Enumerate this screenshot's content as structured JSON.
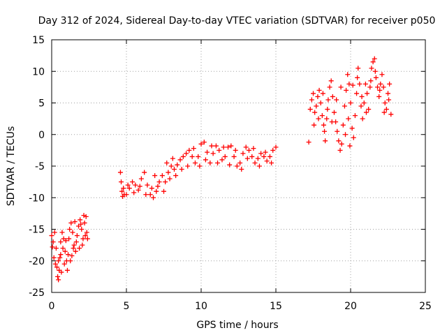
{
  "chart_data": {
    "type": "scatter",
    "title": "Day 312 of 2024, Sidereal Day-to-day VTEC variation (SDTVAR) for receiver p050",
    "xlabel": "GPS time / hours",
    "ylabel": "SDTVAR / TECUs",
    "xlim": [
      0,
      25
    ],
    "ylim": [
      -25,
      15
    ],
    "x_ticks": [
      0,
      5,
      10,
      15,
      20,
      25
    ],
    "y_ticks": [
      -25,
      -20,
      -15,
      -10,
      -5,
      0,
      5,
      10,
      15
    ],
    "grid": true,
    "marker": "plus",
    "color": "#ff0000",
    "series": [
      {
        "points": [
          [
            0.0,
            -16.0
          ],
          [
            0.1,
            -17.0
          ],
          [
            0.2,
            -15.5
          ],
          [
            0.3,
            -18.0
          ],
          [
            0.35,
            -21.0
          ],
          [
            0.4,
            -22.5
          ],
          [
            0.45,
            -23.0
          ],
          [
            0.5,
            -21.5
          ],
          [
            0.55,
            -19.5
          ],
          [
            0.6,
            -17.0
          ],
          [
            0.7,
            -15.5
          ],
          [
            0.8,
            -16.5
          ],
          [
            0.9,
            -18.5
          ],
          [
            1.0,
            -20.0
          ],
          [
            1.1,
            -19.0
          ],
          [
            1.15,
            -16.5
          ],
          [
            1.2,
            -15.0
          ],
          [
            1.3,
            -14.0
          ],
          [
            1.4,
            -15.5
          ],
          [
            1.5,
            -17.5
          ],
          [
            1.6,
            -18.5
          ],
          [
            1.7,
            -16.0
          ],
          [
            1.8,
            -14.5
          ],
          [
            1.9,
            -13.5
          ],
          [
            2.0,
            -15.0
          ],
          [
            2.1,
            -16.5
          ],
          [
            2.2,
            -14.0
          ],
          [
            2.3,
            -13.0
          ],
          [
            2.35,
            -15.5
          ],
          [
            2.4,
            -16.5
          ],
          [
            0.15,
            -19.5
          ],
          [
            0.25,
            -20.5
          ],
          [
            0.45,
            -20.0
          ],
          [
            0.6,
            -19.0
          ],
          [
            0.75,
            -18.0
          ],
          [
            0.85,
            -20.5
          ],
          [
            1.05,
            -21.5
          ],
          [
            1.25,
            -20.0
          ],
          [
            1.45,
            -18.0
          ],
          [
            1.65,
            -17.0
          ],
          [
            1.85,
            -18.0
          ],
          [
            2.05,
            -17.5
          ],
          [
            2.25,
            -16.0
          ],
          [
            0.05,
            -17.8
          ],
          [
            0.95,
            -16.8
          ],
          [
            1.55,
            -13.8
          ],
          [
            2.15,
            -12.8
          ],
          [
            0.65,
            -21.8
          ],
          [
            1.35,
            -19.2
          ],
          [
            1.95,
            -14.2
          ],
          [
            4.6,
            -6.0
          ],
          [
            4.65,
            -7.5
          ],
          [
            4.7,
            -9.0
          ],
          [
            4.75,
            -9.8
          ],
          [
            4.8,
            -8.5
          ],
          [
            4.85,
            -9.5
          ],
          [
            5.0,
            -9.5
          ],
          [
            5.2,
            -8.5
          ],
          [
            5.4,
            -7.5
          ],
          [
            5.6,
            -8.0
          ],
          [
            5.8,
            -8.8
          ],
          [
            6.0,
            -7.0
          ],
          [
            6.2,
            -6.0
          ],
          [
            6.4,
            -8.0
          ],
          [
            6.6,
            -9.5
          ],
          [
            6.8,
            -10.0
          ],
          [
            7.0,
            -9.0
          ],
          [
            7.2,
            -7.5
          ],
          [
            7.4,
            -6.5
          ],
          [
            7.6,
            -7.5
          ],
          [
            7.8,
            -6.0
          ],
          [
            8.0,
            -5.0
          ],
          [
            8.2,
            -5.5
          ],
          [
            8.4,
            -4.8
          ],
          [
            8.6,
            -4.0
          ],
          [
            8.8,
            -3.5
          ],
          [
            9.0,
            -3.0
          ],
          [
            9.2,
            -2.5
          ],
          [
            9.4,
            -3.5
          ],
          [
            9.6,
            -4.5
          ],
          [
            9.8,
            -3.5
          ],
          [
            10.0,
            -1.5
          ],
          [
            10.2,
            -1.2
          ],
          [
            10.4,
            -2.8
          ],
          [
            10.6,
            -4.5
          ],
          [
            10.8,
            -3.0
          ],
          [
            11.0,
            -1.8
          ],
          [
            11.2,
            -2.5
          ],
          [
            11.4,
            -4.0
          ],
          [
            11.6,
            -3.5
          ],
          [
            11.8,
            -2.0
          ],
          [
            12.0,
            -1.8
          ],
          [
            12.2,
            -3.5
          ],
          [
            12.4,
            -5.0
          ],
          [
            12.6,
            -4.5
          ],
          [
            12.8,
            -3.0
          ],
          [
            13.0,
            -2.0
          ],
          [
            13.2,
            -2.5
          ],
          [
            13.4,
            -3.5
          ],
          [
            13.6,
            -4.5
          ],
          [
            13.8,
            -3.8
          ],
          [
            14.0,
            -3.0
          ],
          [
            14.2,
            -3.5
          ],
          [
            14.4,
            -4.2
          ],
          [
            14.6,
            -3.5
          ],
          [
            14.8,
            -2.5
          ],
          [
            15.0,
            -2.0
          ],
          [
            5.1,
            -8.0
          ],
          [
            5.5,
            -9.2
          ],
          [
            5.9,
            -8.2
          ],
          [
            6.3,
            -9.5
          ],
          [
            6.7,
            -8.5
          ],
          [
            7.1,
            -8.2
          ],
          [
            7.5,
            -9.0
          ],
          [
            7.9,
            -7.0
          ],
          [
            8.3,
            -6.5
          ],
          [
            8.7,
            -5.5
          ],
          [
            9.1,
            -5.0
          ],
          [
            9.5,
            -2.2
          ],
          [
            9.9,
            -5.0
          ],
          [
            10.3,
            -4.0
          ],
          [
            10.7,
            -1.8
          ],
          [
            11.1,
            -4.5
          ],
          [
            11.5,
            -2.0
          ],
          [
            11.9,
            -4.8
          ],
          [
            12.3,
            -2.5
          ],
          [
            12.7,
            -5.5
          ],
          [
            13.1,
            -3.8
          ],
          [
            13.5,
            -2.2
          ],
          [
            13.9,
            -5.0
          ],
          [
            14.3,
            -2.8
          ],
          [
            14.7,
            -4.5
          ],
          [
            8.1,
            -3.8
          ],
          [
            7.7,
            -4.5
          ],
          [
            6.9,
            -6.5
          ],
          [
            17.2,
            -1.2
          ],
          [
            17.3,
            4.0
          ],
          [
            17.4,
            5.5
          ],
          [
            17.5,
            6.5
          ],
          [
            17.6,
            3.5
          ],
          [
            17.7,
            4.5
          ],
          [
            17.8,
            6.0
          ],
          [
            17.9,
            7.0
          ],
          [
            18.0,
            5.0
          ],
          [
            18.1,
            3.0
          ],
          [
            18.2,
            1.5
          ],
          [
            18.3,
            -1.0
          ],
          [
            18.4,
            2.5
          ],
          [
            18.5,
            5.5
          ],
          [
            18.6,
            7.5
          ],
          [
            18.7,
            8.5
          ],
          [
            18.8,
            6.0
          ],
          [
            18.9,
            3.5
          ],
          [
            19.0,
            2.0
          ],
          [
            19.1,
            0.5
          ],
          [
            19.2,
            -1.0
          ],
          [
            19.3,
            -2.5
          ],
          [
            19.4,
            -1.5
          ],
          [
            19.5,
            1.5
          ],
          [
            19.6,
            4.5
          ],
          [
            19.7,
            7.0
          ],
          [
            19.8,
            9.5
          ],
          [
            19.9,
            8.0
          ],
          [
            20.0,
            5.0
          ],
          [
            20.1,
            1.0
          ],
          [
            20.2,
            -0.5
          ],
          [
            20.3,
            3.0
          ],
          [
            20.4,
            6.5
          ],
          [
            20.5,
            10.5
          ],
          [
            20.6,
            8.0
          ],
          [
            20.7,
            4.5
          ],
          [
            20.8,
            2.5
          ],
          [
            20.9,
            5.0
          ],
          [
            21.0,
            8.0
          ],
          [
            21.1,
            6.5
          ],
          [
            21.2,
            4.0
          ],
          [
            21.3,
            7.5
          ],
          [
            21.4,
            10.5
          ],
          [
            21.5,
            11.5
          ],
          [
            21.6,
            12.0
          ],
          [
            21.7,
            9.0
          ],
          [
            21.8,
            7.5
          ],
          [
            21.9,
            6.0
          ],
          [
            22.0,
            8.0
          ],
          [
            22.1,
            9.5
          ],
          [
            22.2,
            7.5
          ],
          [
            22.3,
            5.0
          ],
          [
            22.4,
            4.0
          ],
          [
            22.5,
            6.5
          ],
          [
            22.6,
            8.0
          ],
          [
            22.7,
            3.2
          ],
          [
            17.55,
            1.5
          ],
          [
            17.85,
            2.5
          ],
          [
            18.15,
            6.5
          ],
          [
            18.45,
            4.0
          ],
          [
            18.75,
            2.0
          ],
          [
            19.05,
            5.5
          ],
          [
            19.35,
            7.5
          ],
          [
            19.65,
            0.0
          ],
          [
            19.85,
            2.5
          ],
          [
            20.15,
            7.8
          ],
          [
            20.45,
            9.0
          ],
          [
            20.75,
            6.0
          ],
          [
            21.05,
            3.5
          ],
          [
            21.35,
            8.5
          ],
          [
            21.65,
            10.0
          ],
          [
            21.95,
            7.0
          ],
          [
            22.25,
            3.5
          ],
          [
            22.55,
            5.5
          ],
          [
            19.95,
            -1.8
          ],
          [
            18.25,
            0.5
          ]
        ]
      }
    ]
  }
}
